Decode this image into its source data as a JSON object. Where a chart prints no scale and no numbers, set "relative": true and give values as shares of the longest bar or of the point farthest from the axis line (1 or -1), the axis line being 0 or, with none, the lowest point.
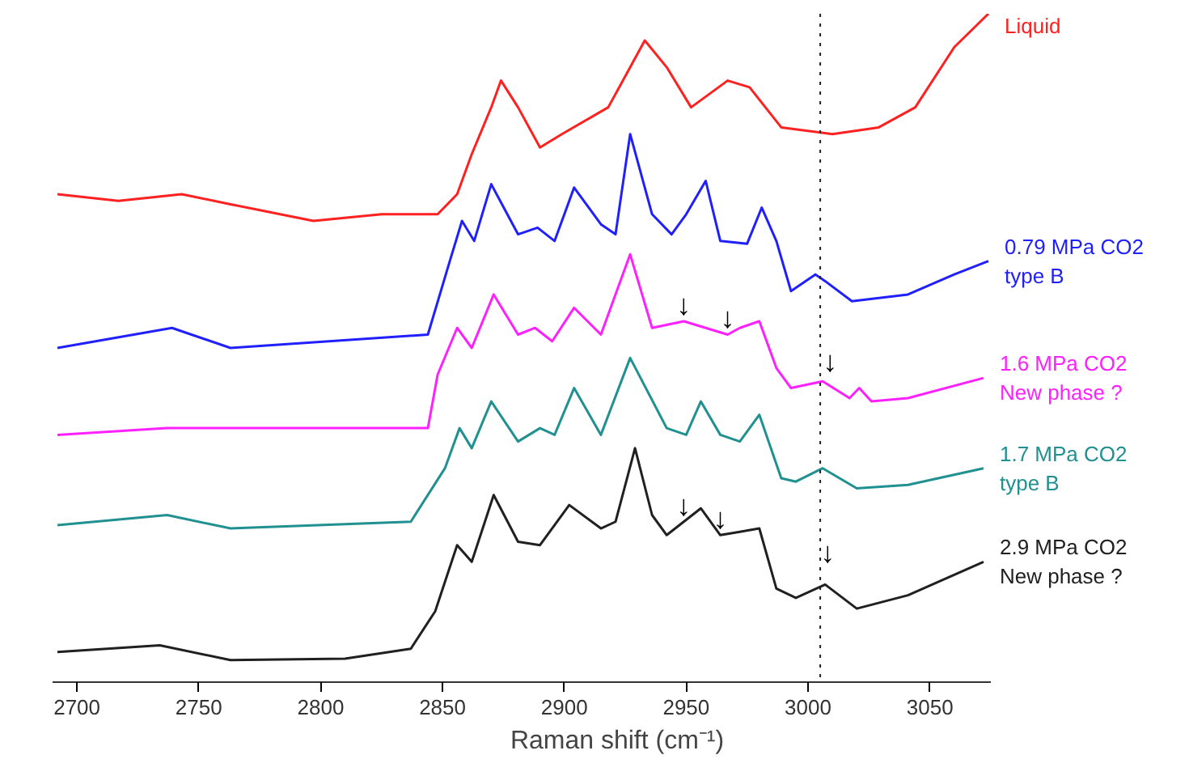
{
  "chart_data": {
    "type": "line",
    "relative": true,
    "xlabel": "Raman shift (cm⁻¹)",
    "xlim": [
      2690,
      3075
    ],
    "xticks": [
      2700,
      2750,
      2800,
      2850,
      2900,
      2950,
      3000,
      3050
    ],
    "grid": false,
    "line_style": "solid",
    "series": [
      {
        "name": "Liquid",
        "color": "#ff2020",
        "x": [
          2692,
          2717,
          2743,
          2763,
          2797,
          2825,
          2848,
          2856,
          2862,
          2870,
          2874,
          2881,
          2890,
          2899,
          2918,
          2933,
          2942,
          2952,
          2967,
          2976,
          2989,
          3010,
          3029,
          3044,
          3060,
          3074
        ],
        "values": [
          0.73,
          0.72,
          0.73,
          0.715,
          0.69,
          0.7,
          0.7,
          0.73,
          0.79,
          0.86,
          0.9,
          0.86,
          0.8,
          0.82,
          0.86,
          0.96,
          0.92,
          0.86,
          0.9,
          0.89,
          0.83,
          0.82,
          0.83,
          0.86,
          0.95,
          1.0
        ]
      },
      {
        "name": "0.79 MPa CO2\ntype B",
        "color": "#2020ff",
        "x": [
          2692,
          2739,
          2763,
          2844,
          2853,
          2858,
          2863,
          2870,
          2881,
          2889,
          2896,
          2904,
          2915,
          2921,
          2927,
          2936,
          2944,
          2950,
          2958,
          2964,
          2975,
          2981,
          2987,
          2993,
          3003,
          3007,
          3018,
          3041,
          3060,
          3074
        ],
        "values": [
          0.5,
          0.53,
          0.5,
          0.52,
          0.63,
          0.69,
          0.66,
          0.745,
          0.67,
          0.68,
          0.66,
          0.74,
          0.685,
          0.67,
          0.82,
          0.7,
          0.67,
          0.7,
          0.75,
          0.66,
          0.656,
          0.71,
          0.66,
          0.585,
          0.61,
          0.6,
          0.57,
          0.58,
          0.61,
          0.63
        ]
      },
      {
        "name": "1.6 MPa CO2\nNew phase ?",
        "color": "#ff20ff",
        "x": [
          2692,
          2737,
          2844,
          2848,
          2856,
          2862,
          2871,
          2881,
          2888,
          2895,
          2904,
          2915,
          2927,
          2936,
          2949,
          2958,
          2967,
          2972,
          2980,
          2987,
          2993,
          3006,
          3017,
          3021,
          3026,
          3041,
          3072
        ],
        "values": [
          0.37,
          0.38,
          0.38,
          0.46,
          0.53,
          0.5,
          0.58,
          0.52,
          0.53,
          0.51,
          0.56,
          0.52,
          0.64,
          0.53,
          0.54,
          0.53,
          0.52,
          0.53,
          0.54,
          0.47,
          0.44,
          0.45,
          0.425,
          0.44,
          0.42,
          0.425,
          0.455
        ]
      },
      {
        "name": "1.7 MPa CO2\ntype B",
        "color": "#209090",
        "x": [
          2692,
          2737,
          2763,
          2837,
          2851,
          2857,
          2862,
          2870,
          2881,
          2890,
          2896,
          2904,
          2915,
          2927,
          2942,
          2950,
          2956,
          2964,
          2972,
          2980,
          2989,
          2995,
          3006,
          3020,
          3041,
          3072
        ],
        "values": [
          0.235,
          0.25,
          0.23,
          0.24,
          0.32,
          0.38,
          0.35,
          0.42,
          0.36,
          0.38,
          0.37,
          0.44,
          0.37,
          0.485,
          0.38,
          0.37,
          0.42,
          0.37,
          0.36,
          0.4,
          0.305,
          0.3,
          0.32,
          0.29,
          0.295,
          0.32
        ]
      },
      {
        "name": "2.9 MPa CO2\nNew phase ?",
        "color": "#202020",
        "x": [
          2692,
          2734,
          2763,
          2810,
          2837,
          2847,
          2856,
          2862,
          2871,
          2881,
          2890,
          2902,
          2915,
          2921,
          2929,
          2936,
          2942,
          2949,
          2956,
          2964,
          2972,
          2980,
          2987,
          2995,
          3007,
          3020,
          3041,
          3072
        ],
        "values": [
          0.045,
          0.055,
          0.033,
          0.035,
          0.05,
          0.106,
          0.205,
          0.18,
          0.28,
          0.21,
          0.205,
          0.265,
          0.23,
          0.24,
          0.35,
          0.25,
          0.22,
          0.24,
          0.26,
          0.22,
          0.225,
          0.23,
          0.14,
          0.126,
          0.146,
          0.11,
          0.13,
          0.18
        ]
      }
    ],
    "ref_lines": [
      {
        "axis": "x",
        "value": 3005,
        "line_style": "dotted",
        "color": "#202020"
      }
    ],
    "annotations": [
      {
        "text": "↓",
        "x": 2949,
        "y": 0.54
      },
      {
        "text": "↓",
        "x": 2967,
        "y": 0.52
      },
      {
        "text": "↓",
        "x": 3009,
        "y": 0.455
      },
      {
        "text": "↓",
        "x": 2949,
        "y": 0.24
      },
      {
        "text": "↓",
        "x": 2964,
        "y": 0.22
      },
      {
        "text": "↓",
        "x": 3008,
        "y": 0.17
      }
    ]
  }
}
